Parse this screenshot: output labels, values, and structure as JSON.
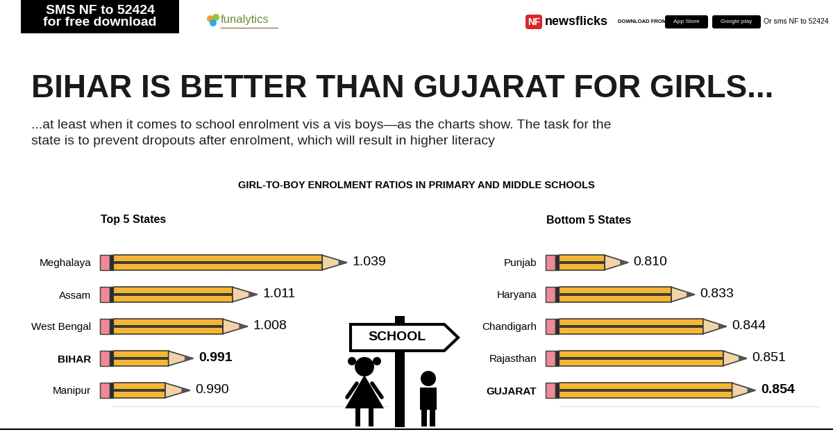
{
  "header": {
    "sms_box": "SMS NF to 52424\nfor free download",
    "logo": "funalytics",
    "brand_badge": "NF",
    "brand": "newsflicks",
    "download_from": "DOWNLOAD FROM",
    "app_store": "App Store",
    "google_play": "Google play",
    "sms_note": "Or sms NF to 52424"
  },
  "title": "BIHAR IS BETTER THAN GUJARAT FOR GIRLS...",
  "subtitle": "...at least when it comes to school enrolment vis a vis boys—as the charts show. The task for the\nstate is to prevent dropouts after enrolment, which will result in higher literacy",
  "heading": "GIRL-TO-BOY ENROLMENT RATIOS IN PRIMARY AND MIDDLE SCHOOLS",
  "sign": "SCHOOL",
  "chart_data": [
    {
      "type": "bar",
      "orientation": "horizontal",
      "title": "Top 5 States",
      "categories": [
        "Meghalaya",
        "Assam",
        "West Bengal",
        "BIHAR",
        "Manipur"
      ],
      "values": [
        1.039,
        1.011,
        1.008,
        0.991,
        0.99
      ],
      "value_labels": [
        "1.039",
        "1.011",
        "1.008",
        "0.991",
        "0.990"
      ],
      "data_labels": true,
      "tick_labels": "y",
      "color": "#f5b731",
      "xlim": [
        0.966,
        1.052
      ],
      "xticks": []
    },
    {
      "type": "bar",
      "orientation": "horizontal",
      "title": "Bottom 5 States",
      "categories": [
        "Punjab",
        "Haryana",
        "Chandigarh",
        "Rajasthan",
        "GUJARAT"
      ],
      "values": [
        0.81,
        0.833,
        0.844,
        0.851,
        0.854
      ],
      "value_labels": [
        "0.810",
        "0.833",
        "0.844",
        "0.851",
        "0.854"
      ],
      "data_labels": true,
      "tick_labels": "y",
      "color": "#f5b731",
      "xlim": [
        0.786,
        0.876
      ],
      "xticks": []
    }
  ]
}
